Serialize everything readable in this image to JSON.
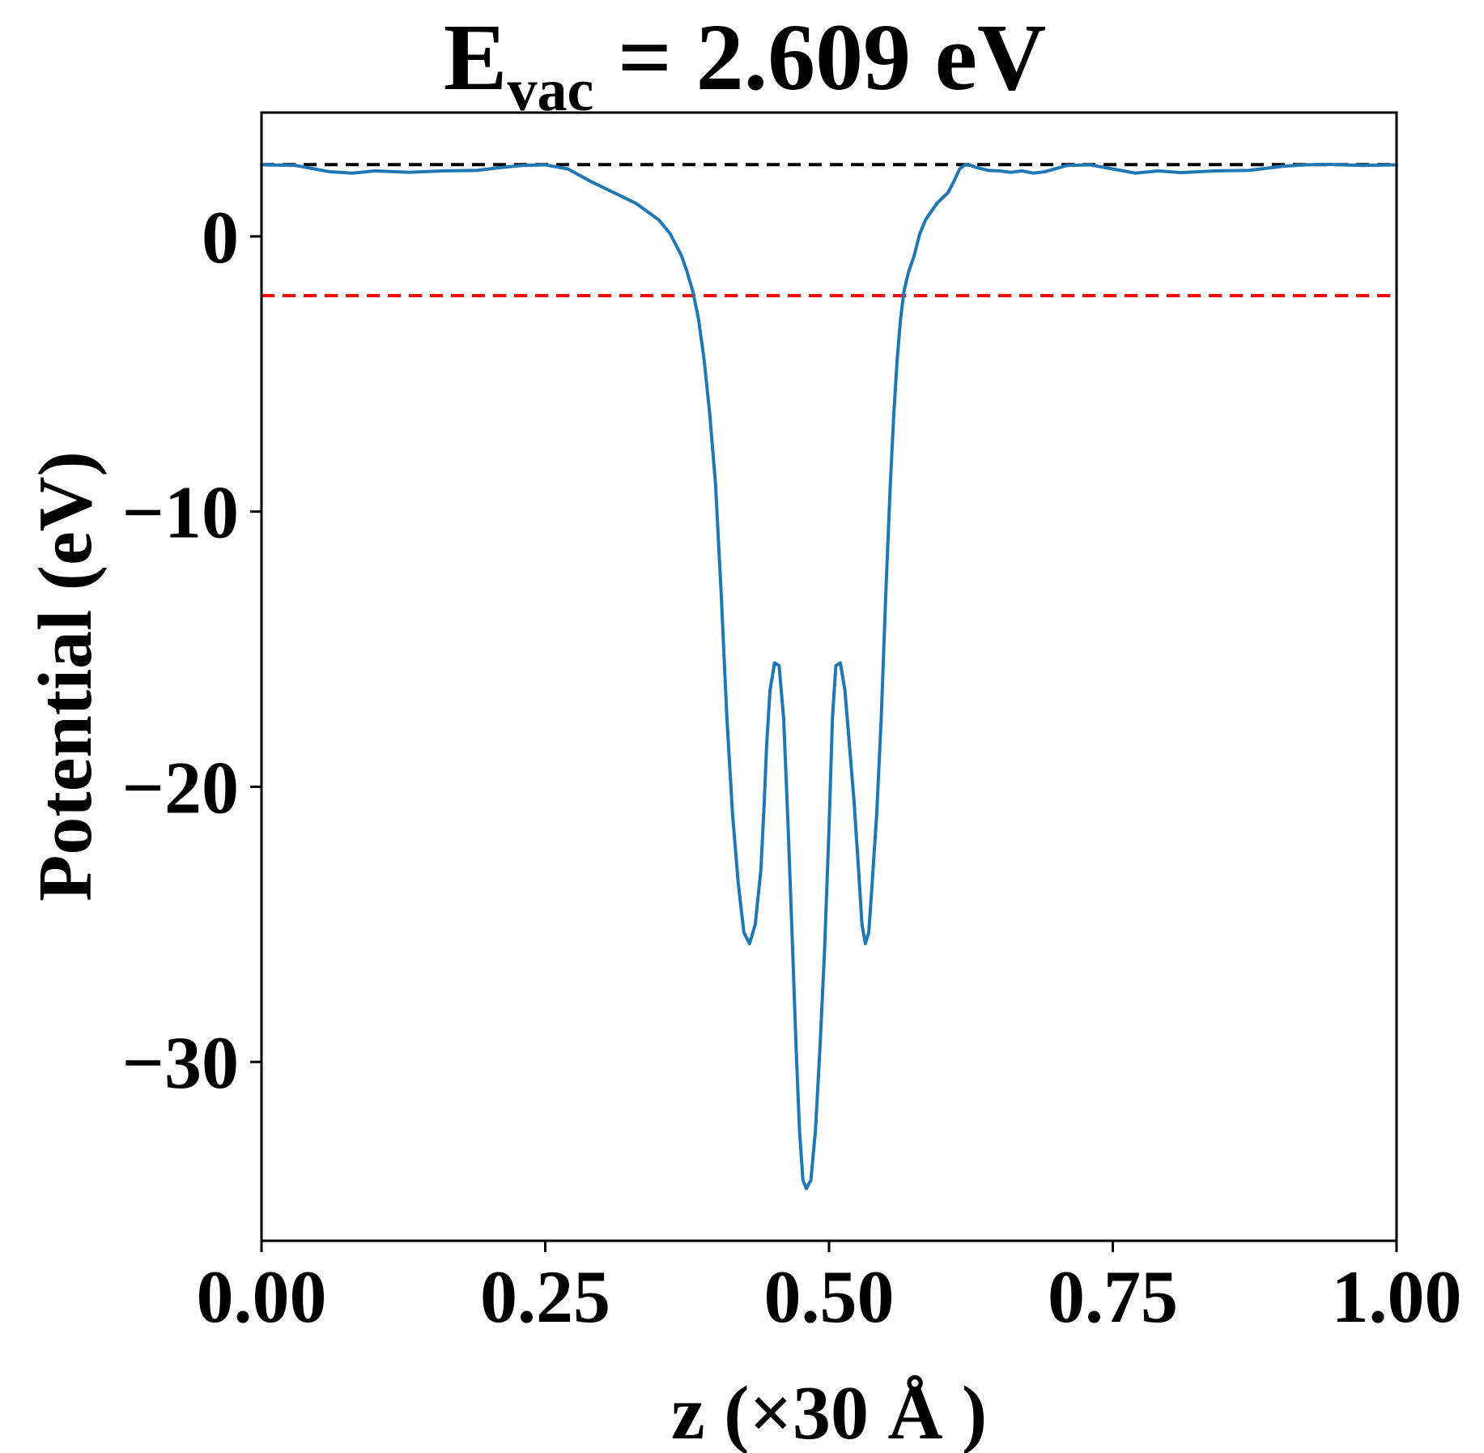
{
  "chart_data": {
    "type": "line",
    "title": {
      "main": "E",
      "subscript": "vac",
      "rest": " = 2.609 eV"
    },
    "xlabel": "z (×30 Å )",
    "ylabel": "Potential (eV)",
    "xlim": [
      0.0,
      1.0
    ],
    "ylim": [
      -36.5,
      4.5
    ],
    "x_ticks": [
      0.0,
      0.25,
      0.5,
      0.75,
      1.0
    ],
    "x_tick_labels": [
      "0.00",
      "0.25",
      "0.50",
      "0.75",
      "1.00"
    ],
    "y_ticks": [
      0,
      -10,
      -20,
      -30
    ],
    "y_tick_labels": [
      "0",
      "−10",
      "−20",
      "−30"
    ],
    "grid": false,
    "legend": "none",
    "reference_lines": [
      {
        "id": "vacuum-level",
        "y": 2.609,
        "style": "dashed",
        "color": "#000000"
      },
      {
        "id": "fermi-level",
        "y": -2.15,
        "style": "dashed",
        "color": "#ff0000"
      }
    ],
    "series": [
      {
        "color": "#1f77b4",
        "x": [
          0.0,
          0.03,
          0.06,
          0.08,
          0.1,
          0.13,
          0.16,
          0.19,
          0.21,
          0.23,
          0.25,
          0.27,
          0.29,
          0.31,
          0.32,
          0.33,
          0.34,
          0.35,
          0.36,
          0.37,
          0.375,
          0.38,
          0.385,
          0.39,
          0.395,
          0.4,
          0.405,
          0.41,
          0.415,
          0.42,
          0.425,
          0.43,
          0.435,
          0.44,
          0.443,
          0.445,
          0.448,
          0.452,
          0.456,
          0.46,
          0.464,
          0.468,
          0.471,
          0.474,
          0.477,
          0.48,
          0.484,
          0.488,
          0.492,
          0.496,
          0.5,
          0.503,
          0.506,
          0.51,
          0.514,
          0.518,
          0.522,
          0.526,
          0.529,
          0.532,
          0.535,
          0.538,
          0.542,
          0.546,
          0.55,
          0.554,
          0.557,
          0.56,
          0.563,
          0.566,
          0.57,
          0.575,
          0.58,
          0.585,
          0.59,
          0.595,
          0.6,
          0.605,
          0.61,
          0.615,
          0.62,
          0.625,
          0.63,
          0.64,
          0.65,
          0.66,
          0.67,
          0.68,
          0.69,
          0.71,
          0.73,
          0.75,
          0.77,
          0.79,
          0.81,
          0.84,
          0.87,
          0.9,
          0.92,
          0.94,
          0.97,
          1.0
        ],
        "y": [
          2.6,
          2.58,
          2.35,
          2.3,
          2.38,
          2.33,
          2.38,
          2.4,
          2.5,
          2.58,
          2.6,
          2.45,
          2.0,
          1.6,
          1.4,
          1.2,
          0.9,
          0.6,
          0.1,
          -0.7,
          -1.3,
          -2.0,
          -3.0,
          -4.5,
          -6.5,
          -9.0,
          -13.0,
          -17.5,
          -21.0,
          -23.5,
          -25.3,
          -25.7,
          -25.0,
          -23.0,
          -20.5,
          -18.5,
          -16.5,
          -15.5,
          -15.6,
          -17.5,
          -21.5,
          -26.0,
          -29.5,
          -32.5,
          -34.3,
          -34.6,
          -34.3,
          -32.5,
          -29.5,
          -26.0,
          -21.5,
          -17.5,
          -15.6,
          -15.5,
          -16.5,
          -18.5,
          -20.5,
          -23.0,
          -25.0,
          -25.7,
          -25.3,
          -23.5,
          -21.0,
          -17.5,
          -13.0,
          -9.0,
          -6.5,
          -4.5,
          -3.0,
          -2.0,
          -1.3,
          -0.7,
          0.1,
          0.6,
          0.9,
          1.2,
          1.4,
          1.6,
          2.0,
          2.45,
          2.6,
          2.58,
          2.5,
          2.4,
          2.38,
          2.33,
          2.38,
          2.3,
          2.35,
          2.58,
          2.6,
          2.45,
          2.3,
          2.38,
          2.32,
          2.38,
          2.4,
          2.55,
          2.6,
          2.62,
          2.58,
          2.6
        ]
      }
    ]
  }
}
